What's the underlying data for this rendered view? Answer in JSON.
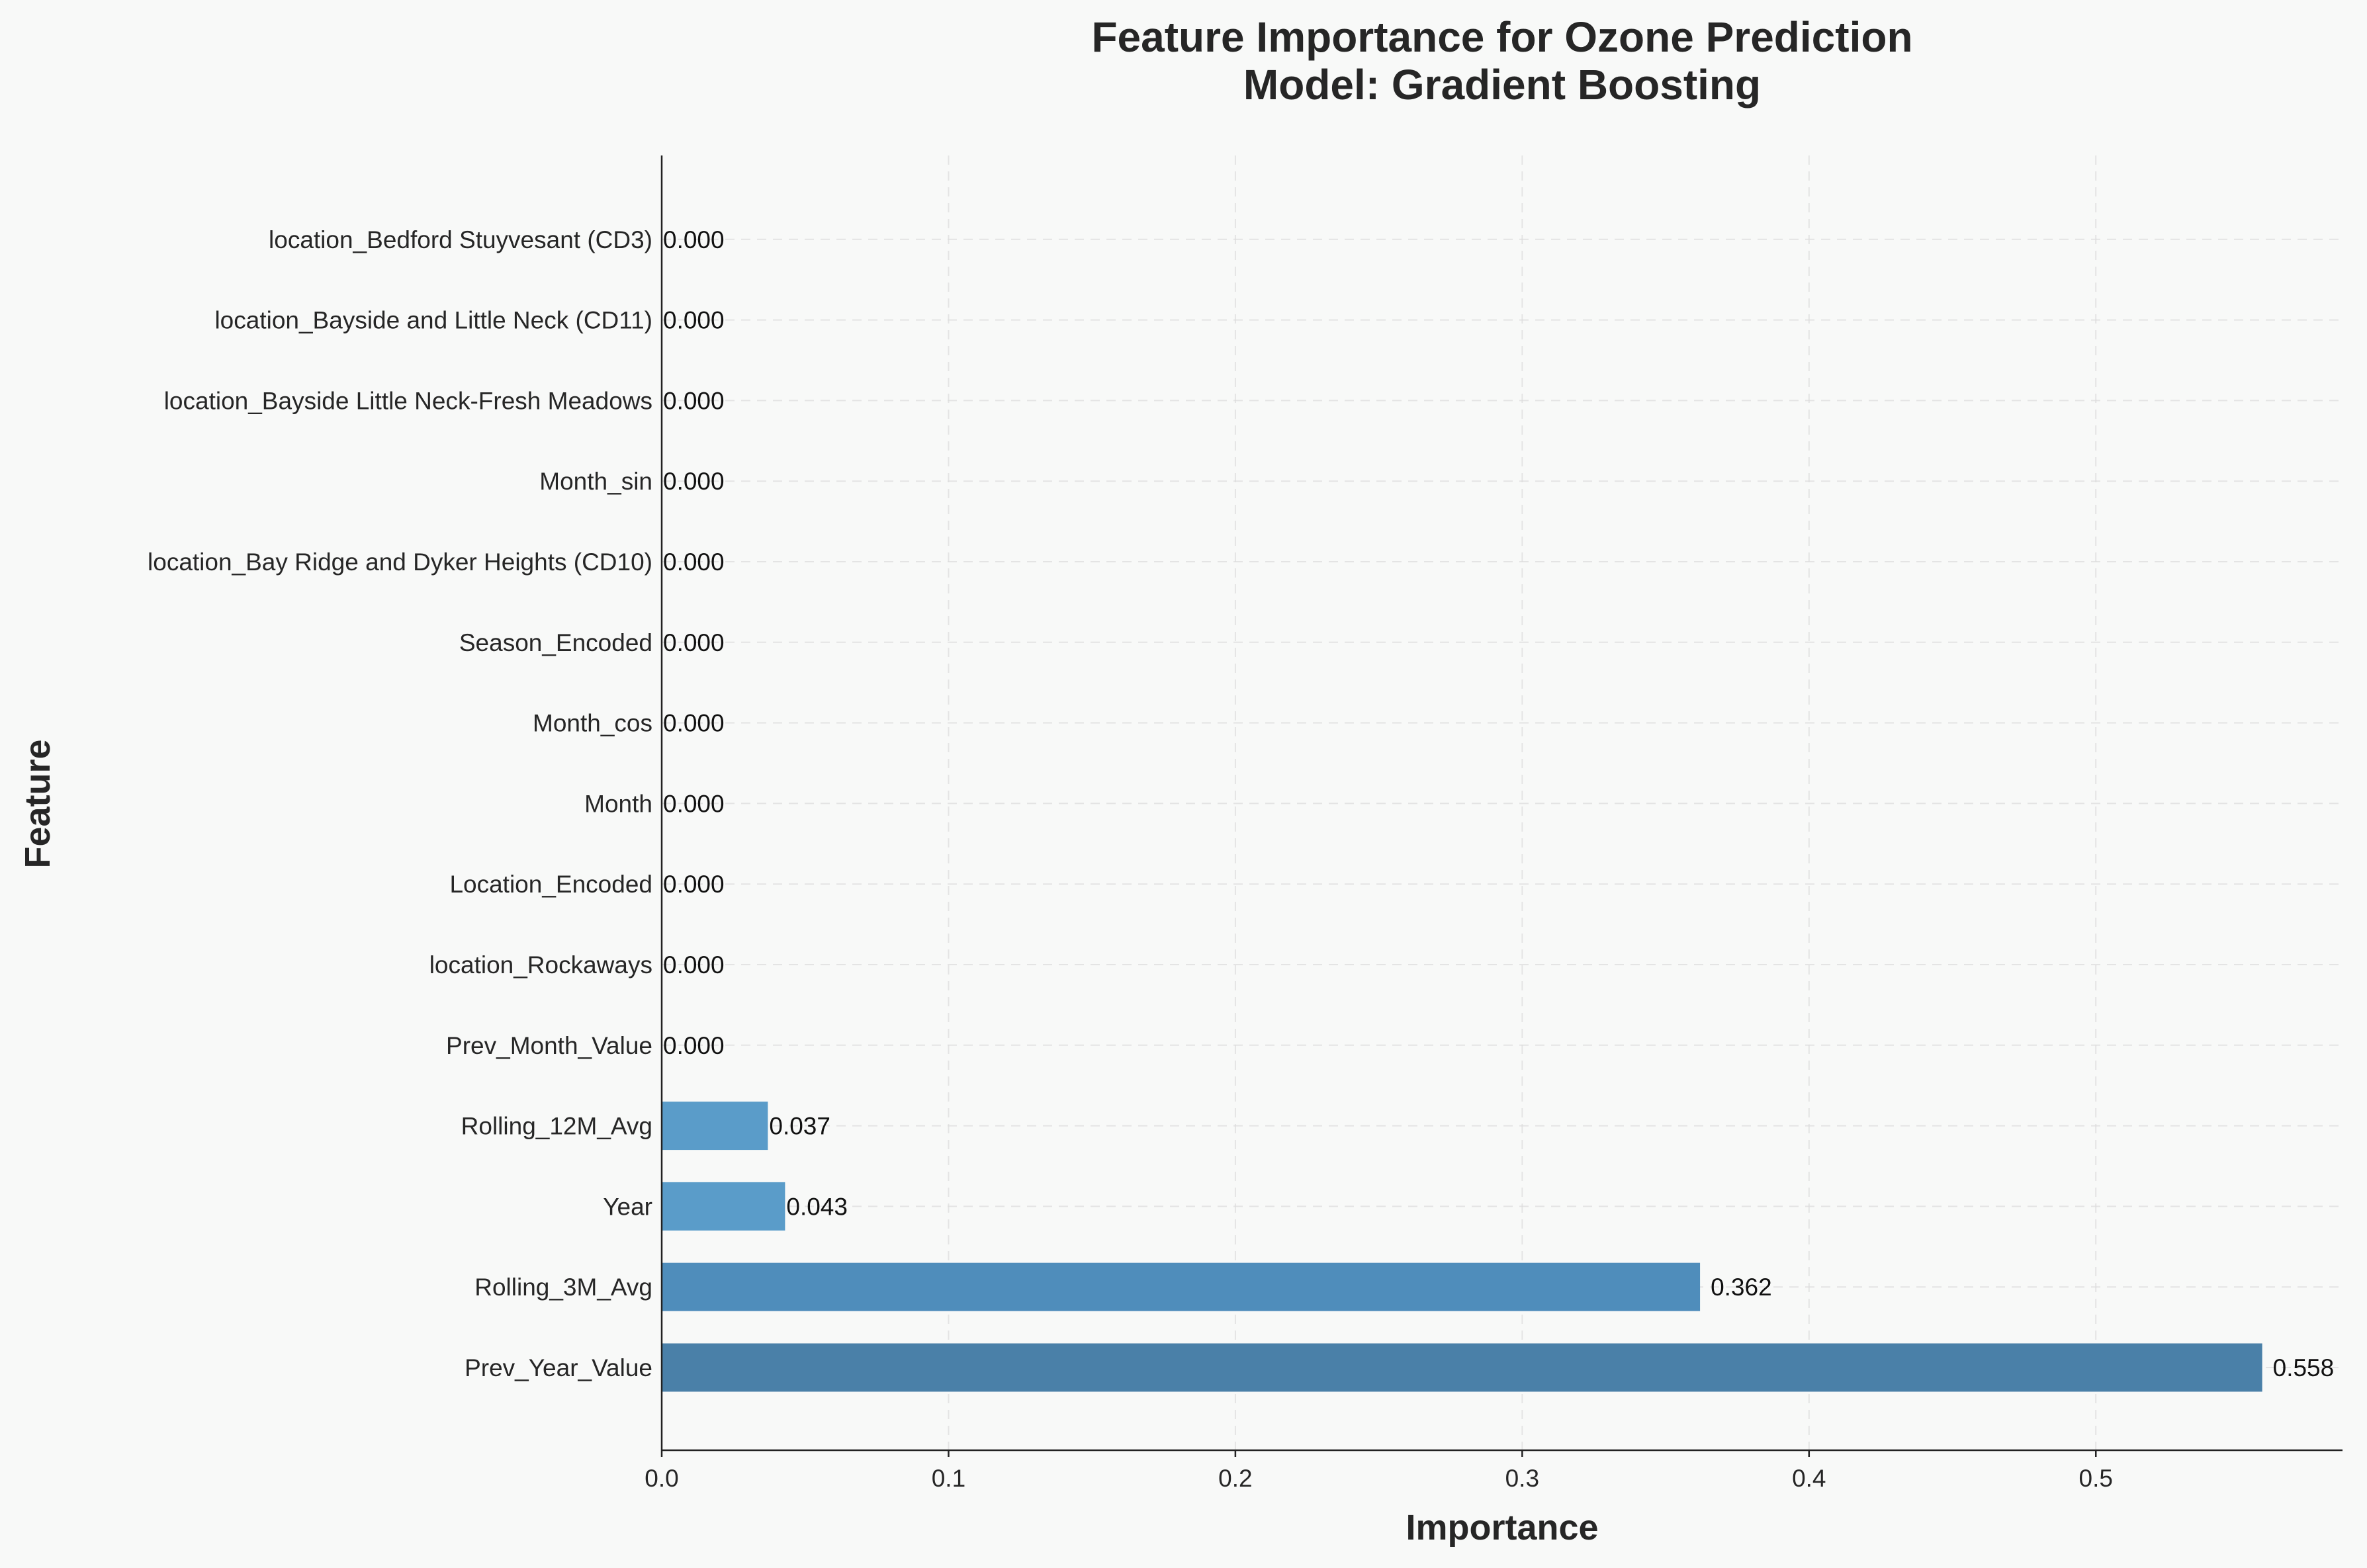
{
  "chart_data": {
    "type": "bar",
    "orientation": "horizontal",
    "title": "Feature Importance for Ozone Prediction",
    "subtitle": "Model: Gradient Boosting",
    "xlabel": "Importance",
    "ylabel": "Feature",
    "xlim": [
      0,
      0.586
    ],
    "xticks": [
      "0.0",
      "0.1",
      "0.2",
      "0.3",
      "0.4",
      "0.5"
    ],
    "xtick_values": [
      0,
      0.1,
      0.2,
      0.3,
      0.4,
      0.5
    ],
    "grid": true,
    "bar_color_low": "#5a9cc9",
    "bar_color_high": "#4a80a8",
    "categories": [
      "Prev_Year_Value",
      "Rolling_3M_Avg",
      "Year",
      "Rolling_12M_Avg",
      "Prev_Month_Value",
      "location_Rockaways",
      "Location_Encoded",
      "Month",
      "Month_cos",
      "Season_Encoded",
      "location_Bay Ridge and Dyker Heights (CD10)",
      "Month_sin",
      "location_Bayside Little Neck-Fresh Meadows",
      "location_Bayside and Little Neck (CD11)",
      "location_Bedford Stuyvesant (CD3)"
    ],
    "values": [
      0.558,
      0.362,
      0.043,
      0.037,
      0,
      0,
      0,
      0,
      0,
      0,
      0,
      0,
      0,
      0,
      0
    ],
    "value_labels": [
      "0.558",
      "0.362",
      "0.043",
      "0.037",
      "0.000",
      "0.000",
      "0.000",
      "0.000",
      "0.000",
      "0.000",
      "0.000",
      "0.000",
      "0.000",
      "0.000",
      "0.000"
    ]
  }
}
